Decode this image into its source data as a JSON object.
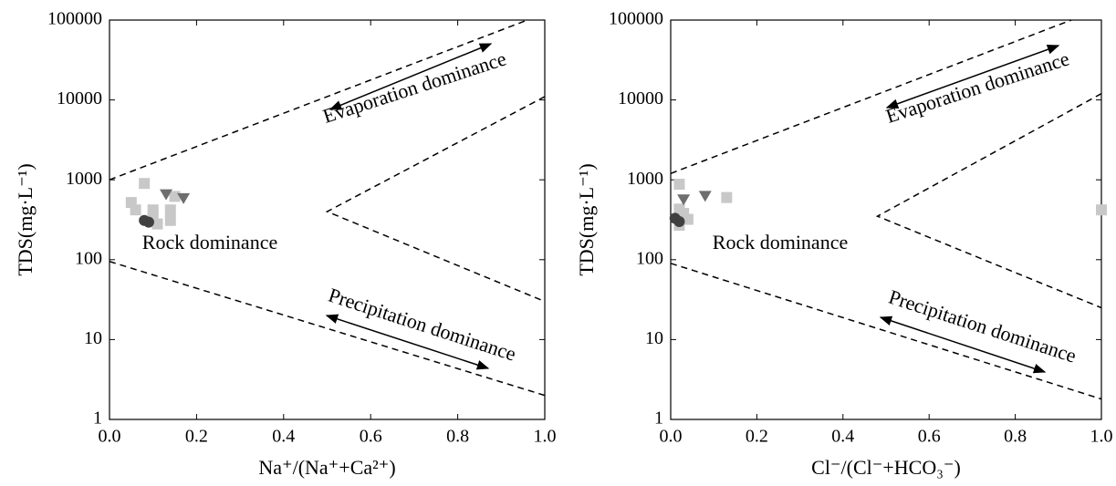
{
  "chart_data": [
    {
      "type": "scatter",
      "x_label": "Na⁺/(Na⁺+Ca²⁺)",
      "y_label": "TDS(mg·L⁻¹)",
      "xlim": [
        0,
        1
      ],
      "xticks": [
        {
          "value": 0,
          "label": "0.0"
        },
        0.2,
        0.4,
        0.6,
        0.8,
        {
          "value": 1,
          "label": "1.0"
        }
      ],
      "ylim": [
        1,
        100000
      ],
      "yticks": [
        1,
        10,
        100,
        1000,
        10000,
        100000
      ],
      "y_log": true,
      "annotations": [
        "Evaporation dominance",
        "Rock dominance",
        "Precipitation dominance"
      ],
      "boundary_lines": [
        {
          "x": [
            0,
            0.96
          ],
          "y": [
            1000,
            100000
          ]
        },
        {
          "x": [
            1.0,
            0.5,
            1.0
          ],
          "y": [
            11000,
            400,
            30
          ]
        },
        {
          "x": [
            0,
            1.0
          ],
          "y": [
            95,
            2
          ]
        }
      ],
      "series": [
        {
          "marker": "square",
          "color": "#c8c8c8",
          "x": [
            0.05,
            0.06,
            0.08,
            0.1,
            0.1,
            0.11,
            0.14,
            0.14,
            0.15
          ],
          "y": [
            520,
            420,
            900,
            420,
            350,
            280,
            420,
            310,
            620
          ]
        },
        {
          "marker": "triangle",
          "color": "#6e6e6e",
          "x": [
            0.13,
            0.17
          ],
          "y": [
            650,
            580
          ]
        },
        {
          "marker": "circle",
          "color": "#404040",
          "x": [
            0.08,
            0.09
          ],
          "y": [
            310,
            295
          ]
        }
      ]
    },
    {
      "type": "scatter",
      "x_label": "Cl⁻/(Cl⁻+HCO₃⁻)",
      "y_label": "TDS(mg·L⁻¹)",
      "xlim": [
        0,
        1
      ],
      "xticks": [
        {
          "value": 0,
          "label": "0.0"
        },
        0.2,
        0.4,
        0.6,
        0.8,
        {
          "value": 1,
          "label": "1.0"
        }
      ],
      "ylim": [
        1,
        100000
      ],
      "yticks": [
        1,
        10,
        100,
        1000,
        10000,
        100000
      ],
      "y_log": true,
      "annotations": [
        "Evaporation dominance",
        "Rock dominance",
        "Precipitation dominance"
      ],
      "boundary_lines": [
        {
          "x": [
            0,
            0.93
          ],
          "y": [
            1200,
            100000
          ]
        },
        {
          "x": [
            1.0,
            0.48,
            1.0
          ],
          "y": [
            12000,
            350,
            25
          ]
        },
        {
          "x": [
            0,
            1.0
          ],
          "y": [
            90,
            1.8
          ]
        }
      ],
      "series": [
        {
          "marker": "square",
          "color": "#c8c8c8",
          "x": [
            0.02,
            0.02,
            0.03,
            0.04,
            0.02,
            0.13,
            1.0
          ],
          "y": [
            880,
            430,
            380,
            320,
            270,
            600,
            420
          ]
        },
        {
          "marker": "triangle",
          "color": "#6e6e6e",
          "x": [
            0.03,
            0.08
          ],
          "y": [
            560,
            620
          ]
        },
        {
          "marker": "circle",
          "color": "#404040",
          "x": [
            0.02,
            0.01
          ],
          "y": [
            300,
            330
          ]
        }
      ]
    }
  ]
}
